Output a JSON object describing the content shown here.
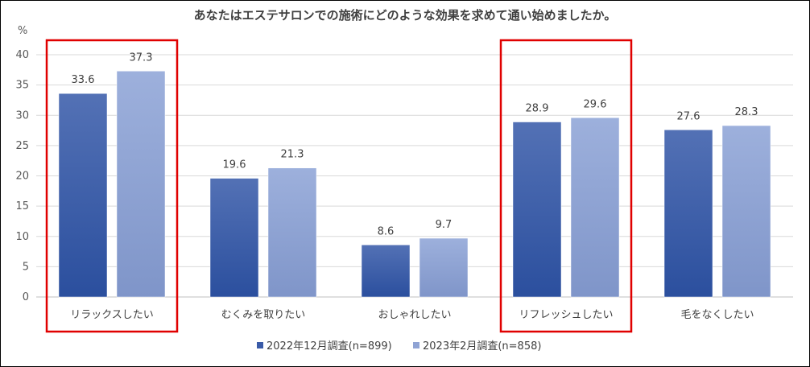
{
  "chart_data": {
    "type": "bar",
    "title": "あなたはエステサロンでの施術にどのような効果を求めて通い始めましたか。",
    "ylabel": "%",
    "ylim": [
      0,
      40
    ],
    "yticks": [
      0,
      5,
      10,
      15,
      20,
      25,
      30,
      35,
      40
    ],
    "grid": true,
    "legend_position": "bottom",
    "categories": [
      "リラックスしたい",
      "むくみを取りたい",
      "おしゃれしたい",
      "リフレッシュしたい",
      "毛をなくしたい"
    ],
    "series": [
      {
        "name": "2022年12月調査(n=899)",
        "values": [
          33.6,
          19.6,
          8.6,
          28.9,
          27.6
        ],
        "color": "#3a5ba8"
      },
      {
        "name": "2023年2月調査(n=858)",
        "values": [
          37.3,
          21.3,
          9.7,
          29.6,
          28.3
        ],
        "color": "#8fa3d4"
      }
    ],
    "highlighted_categories": [
      "リラックスしたい",
      "リフレッシュしたい"
    ],
    "highlight_color": "#e00000"
  }
}
